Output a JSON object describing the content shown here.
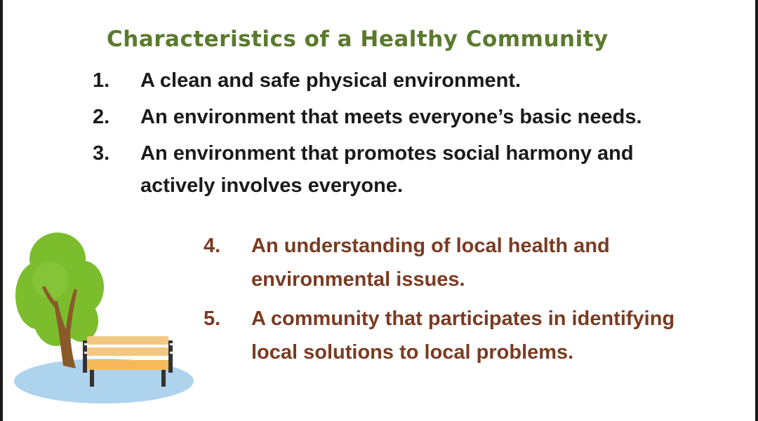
{
  "title": "Characteristics of a Healthy Community",
  "items_top": [
    {
      "number": "1.",
      "lines": [
        "A clean and safe physical environment."
      ]
    },
    {
      "number": "2.",
      "lines": [
        "An environment that meets everyone’s basic needs."
      ]
    },
    {
      "number": "3.",
      "lines": [
        "An environment that promotes social harmony and",
        "actively involves everyone."
      ]
    }
  ],
  "items_bottom": [
    {
      "number": "4.",
      "lines": [
        "An understanding of local health and",
        "environmental issues."
      ]
    },
    {
      "number": "5.",
      "lines": [
        "A community that participates in identifying",
        "local solutions to local problems."
      ]
    }
  ],
  "colors": {
    "title": "#5a7a2e",
    "top_text": "#1a1a1a",
    "bottom_text": "#7a3b22",
    "tree": "#76b82a",
    "trunk": "#8a5a2b",
    "bench": "#f2c880",
    "ground": "#aed3ec"
  },
  "icons": [
    "tree-icon",
    "bench-icon"
  ]
}
